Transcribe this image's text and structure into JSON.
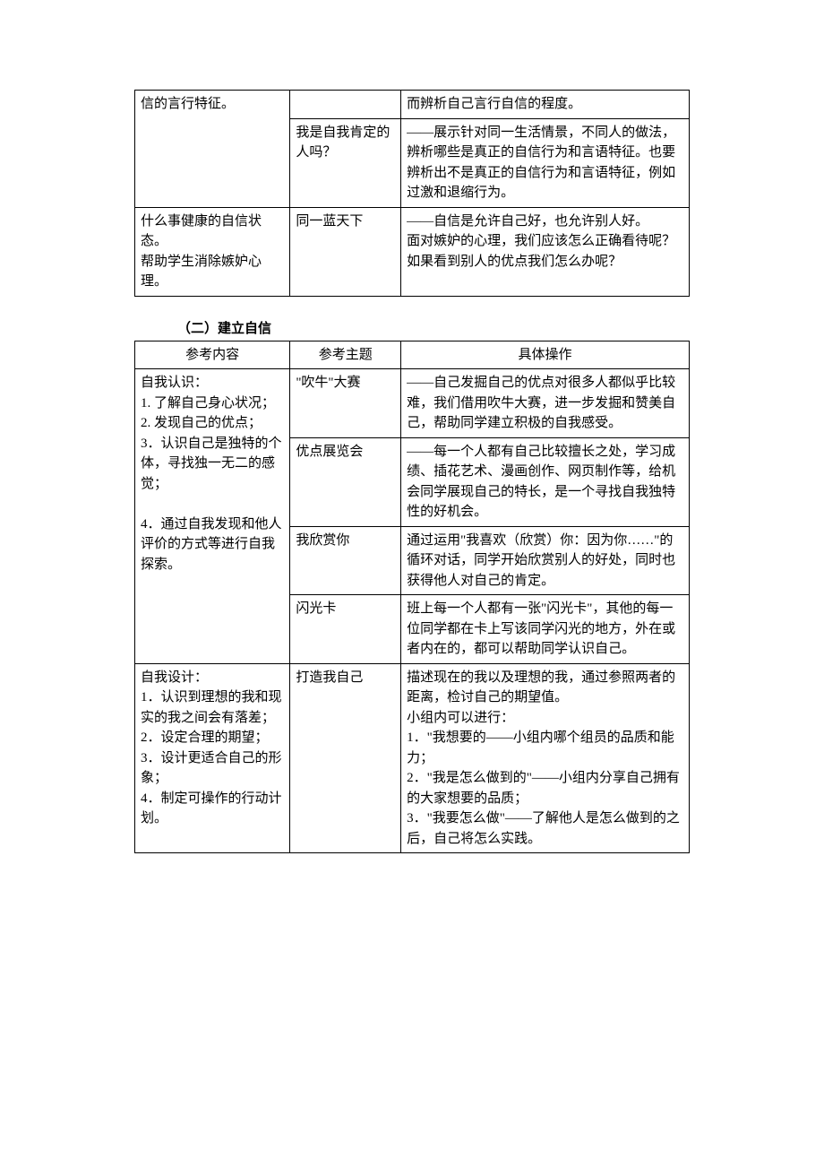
{
  "table1": {
    "rows": [
      {
        "col1": "信的言行特征。",
        "col2a": "",
        "col3a": "而辨析自己言行自信的程度。",
        "col2b": "我是自我肯定的人吗？",
        "col3b": "——展示针对同一生活情景，不同人的做法，辨析哪些是真正的自信行为和言语特征。也要辨析出不是真正的自信行为和言语特征，例如过激和退缩行为。"
      },
      {
        "col1": "什么事健康的自信状态。\n帮助学生消除嫉妒心理。",
        "col2": "同一蓝天下",
        "col3": "——自信是允许自己好，也允许别人好。\n面对嫉妒的心理，我们应该怎么正确看待呢？如果看到别人的优点我们怎么办呢？"
      }
    ]
  },
  "section2": {
    "heading": "（二）建立自信",
    "headers": {
      "h1": "参考内容",
      "h2": "参考主题",
      "h3": "具体操作"
    },
    "group1": {
      "col1": "自我认识：\n1. 了解自己身心状况；\n2. 发现自己的优点；\n3．认识自己是独特的个体，寻找独一无二的感觉；\n\n4．通过自我发现和他人评价的方式等进行自我探索。",
      "rows": [
        {
          "theme": "\"吹牛\"大赛",
          "op": "——自己发掘自己的优点对很多人都似乎比较难，我们借用吹牛大赛，进一步发掘和赞美自己，帮助同学建立积极的自我感受。"
        },
        {
          "theme": "优点展览会",
          "op": "——每一个人都有自己比较擅长之处，学习成绩、插花艺术、漫画创作、网页制作等，给机会同学展现自己的特长，是一个寻找自我独特性的好机会。"
        },
        {
          "theme": "我欣赏你",
          "op": "通过运用\"我喜欢（欣赏）你：因为你……\"的循环对话，同学开始欣赏别人的好处，同时也获得他人对自己的肯定。"
        },
        {
          "theme": "闪光卡",
          "op": "班上每一个人都有一张\"闪光卡\"，其他的每一位同学都在卡上写该同学闪光的地方，外在或者内在的，都可以帮助同学认识自己。"
        }
      ]
    },
    "group2": {
      "col1": "自我设计：\n1．认识到理想的我和现实的我之间会有落差；\n2．设定合理的期望；\n3．设计更适合自己的形象；\n4．制定可操作的行动计划。",
      "theme": "打造我自己",
      "op": "描述现在的我以及理想的我，通过参照两者的距离，检讨自己的期望值。\n小组内可以进行：\n1．\"我想要的——小组内哪个组员的品质和能力；\n2．\"我是怎么做到的\"——小组内分享自己拥有的大家想要的品质；\n3．\"我要怎么做\"——了解他人是怎么做到的之后，自己将怎么实践。"
    }
  }
}
